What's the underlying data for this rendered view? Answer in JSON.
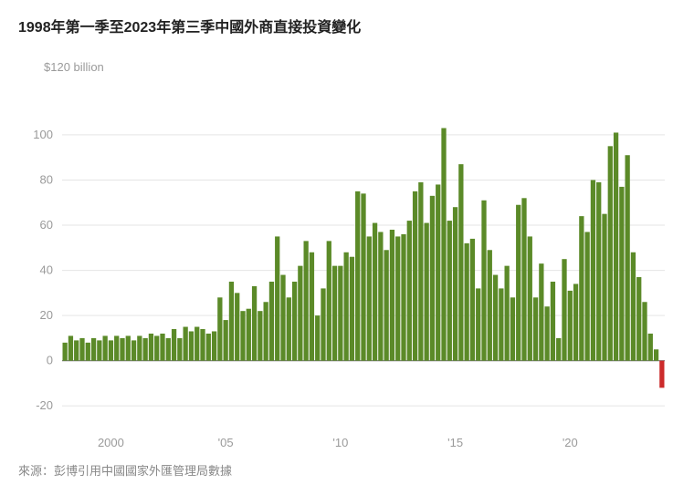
{
  "title": "1998年第一季至2023年第三季中國外商直接投資變化",
  "source": "來源：彭博引用中國國家外匯管理局數據",
  "chart": {
    "type": "bar",
    "y_title": "$120 billion",
    "label_fontsize": 13,
    "title_fontsize": 16,
    "background_color": "#ffffff",
    "grid_color": "#e5e5e5",
    "zero_line_color": "#777777",
    "positive_color": "#5b8a28",
    "negative_color": "#cc2b2b",
    "axis_text_color": "#9a9a9a",
    "yticks": [
      -20,
      0,
      20,
      40,
      60,
      80,
      100
    ],
    "ylim": [
      -30,
      125
    ],
    "xticks": [
      {
        "label": "2000",
        "year": 2000
      },
      {
        "label": "'05",
        "year": 2005
      },
      {
        "label": "'10",
        "year": 2010
      },
      {
        "label": "'15",
        "year": 2015
      },
      {
        "label": "'20",
        "year": 2020
      }
    ],
    "years_range_start": 1998,
    "bar_gap": 1,
    "values": [
      8,
      11,
      9,
      10,
      8,
      10,
      9,
      11,
      9,
      11,
      10,
      11,
      9,
      11,
      10,
      12,
      11,
      12,
      10,
      14,
      10,
      15,
      13,
      15,
      14,
      12,
      13,
      28,
      18,
      35,
      30,
      22,
      23,
      33,
      22,
      26,
      35,
      55,
      38,
      28,
      35,
      42,
      53,
      48,
      20,
      32,
      53,
      42,
      42,
      48,
      46,
      75,
      74,
      55,
      61,
      57,
      49,
      58,
      55,
      56,
      62,
      75,
      79,
      61,
      73,
      78,
      103,
      62,
      68,
      87,
      52,
      54,
      32,
      71,
      49,
      38,
      32,
      42,
      28,
      69,
      72,
      55,
      28,
      43,
      24,
      35,
      10,
      45,
      31,
      34,
      64,
      57,
      80,
      79,
      65,
      95,
      101,
      77,
      91,
      48,
      37,
      26,
      12,
      5,
      -12
    ]
  }
}
